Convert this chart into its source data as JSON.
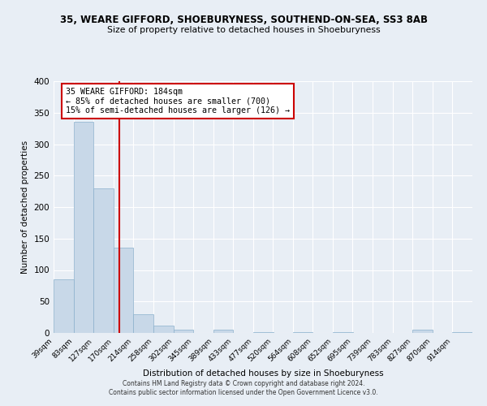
{
  "title1": "35, WEARE GIFFORD, SHOEBURYNESS, SOUTHEND-ON-SEA, SS3 8AB",
  "title2": "Size of property relative to detached houses in Shoeburyness",
  "xlabel": "Distribution of detached houses by size in Shoeburyness",
  "ylabel": "Number of detached properties",
  "bin_edges": [
    39,
    83,
    127,
    170,
    214,
    258,
    302,
    345,
    389,
    433,
    477,
    520,
    564,
    608,
    652,
    695,
    739,
    783,
    827,
    870,
    914
  ],
  "bin_labels": [
    "39sqm",
    "83sqm",
    "127sqm",
    "170sqm",
    "214sqm",
    "258sqm",
    "302sqm",
    "345sqm",
    "389sqm",
    "433sqm",
    "477sqm",
    "520sqm",
    "564sqm",
    "608sqm",
    "652sqm",
    "695sqm",
    "739sqm",
    "783sqm",
    "827sqm",
    "870sqm",
    "914sqm"
  ],
  "counts": [
    85,
    335,
    230,
    136,
    30,
    12,
    5,
    0,
    5,
    0,
    1,
    0,
    1,
    0,
    1,
    0,
    0,
    0,
    5,
    0,
    1
  ],
  "bar_color": "#c8d8e8",
  "bar_edgecolor": "#8ab0cc",
  "vline_x": 184,
  "vline_color": "#cc0000",
  "annotation_line1": "35 WEARE GIFFORD: 184sqm",
  "annotation_line2": "← 85% of detached houses are smaller (700)",
  "annotation_line3": "15% of semi-detached houses are larger (126) →",
  "annotation_box_color": "#cc0000",
  "bg_color": "#e8eef5",
  "footer1": "Contains HM Land Registry data © Crown copyright and database right 2024.",
  "footer2": "Contains public sector information licensed under the Open Government Licence v3.0.",
  "ylim": [
    0,
    400
  ],
  "yticks": [
    0,
    50,
    100,
    150,
    200,
    250,
    300,
    350,
    400
  ]
}
